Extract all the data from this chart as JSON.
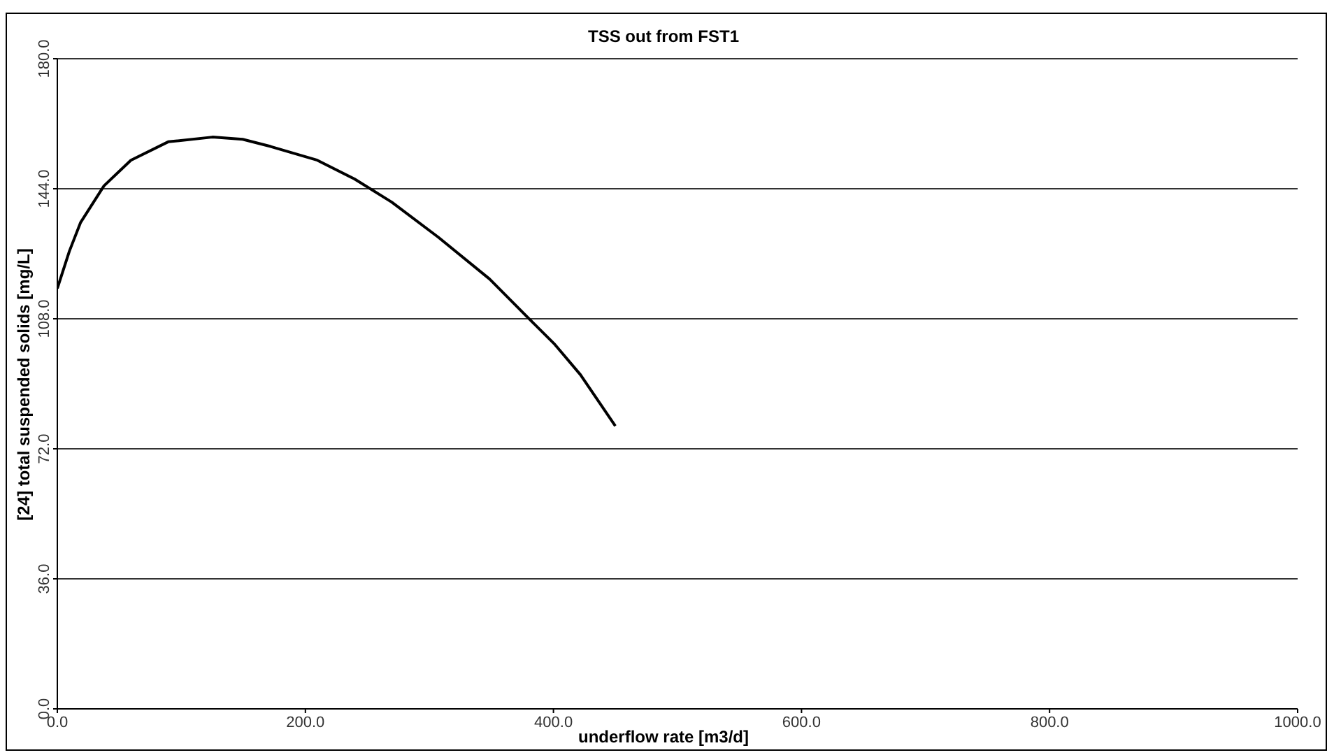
{
  "chart_data": {
    "type": "line",
    "title": "TSS out from FST1",
    "xlabel": "underflow rate [m3/d]",
    "ylabel": "[24] total suspended solids [mg/L]",
    "x": [
      0,
      9.7,
      18.8,
      37.6,
      59.3,
      89.4,
      125,
      149.4,
      172,
      209.6,
      239.6,
      269.6,
      307.1,
      348.5,
      378.6,
      401.1,
      421.8,
      449.9
    ],
    "series": [
      {
        "color": "#000000",
        "values": [
          116.4,
          126.7,
          134.7,
          144.8,
          151.9,
          157.0,
          158.3,
          157.7,
          155.7,
          151.9,
          146.7,
          140.3,
          130.6,
          119,
          108.6,
          100.9,
          92.5,
          78.3
        ]
      }
    ],
    "xlim": [
      0,
      1000
    ],
    "xticks": [
      {
        "value": 0,
        "label": "0.0"
      },
      {
        "value": 200,
        "label": "200.0"
      },
      {
        "value": 400,
        "label": "400.0"
      },
      {
        "value": 600,
        "label": "600.0"
      },
      {
        "value": 800,
        "label": "800.0"
      },
      {
        "value": 1000,
        "label": "1000.0"
      }
    ],
    "ylim": [
      0,
      180
    ],
    "yticks": [
      {
        "value": 0,
        "label": "0.0"
      },
      {
        "value": 36,
        "label": "36.0"
      },
      {
        "value": 72,
        "label": "72.0"
      },
      {
        "value": 108,
        "label": "108.0"
      },
      {
        "value": 144,
        "label": "144.0"
      },
      {
        "value": 180,
        "label": "180.0"
      }
    ],
    "grid": "y",
    "legend": false,
    "marker": "none",
    "line_style": "solid"
  }
}
